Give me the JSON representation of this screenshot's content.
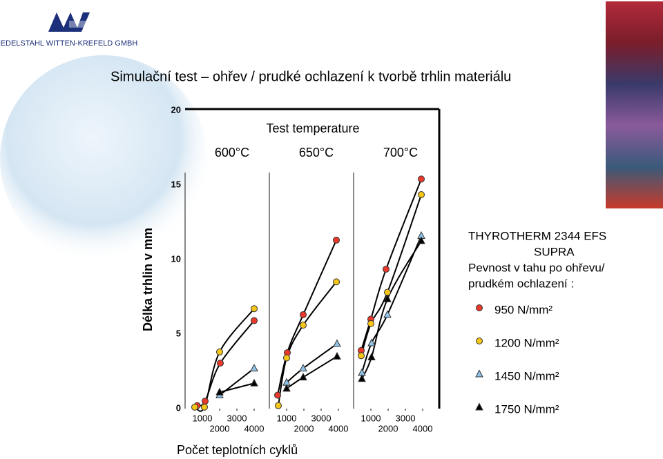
{
  "header": {
    "company": "EDELSTAHL WITTEN-KREFELD GMBH",
    "title": "Simulační test – ohřev /  prudké ochlazení k tvorbě trhlin materiálu"
  },
  "chart_data": {
    "type": "line",
    "title": "Test temperature",
    "ylabel": "Délka  trhlin v  mm",
    "xlabel": "Počet teplotních cyklů",
    "ylim": [
      0,
      20
    ],
    "yticks": [
      0,
      5,
      10,
      15,
      20
    ],
    "panels": [
      {
        "label": "600°C",
        "xlim": [
          0,
          4880
        ],
        "xticks": [
          1000,
          2000,
          3000,
          4000
        ]
      },
      {
        "label": "650°C",
        "xlim": [
          0,
          4880
        ],
        "xticks": [
          1000,
          2000,
          3000,
          4000
        ]
      },
      {
        "label": "700°C",
        "xlim": [
          0,
          4880
        ],
        "xticks": [
          1000,
          2000,
          3000,
          4000
        ]
      }
    ],
    "legend_title": [
      "THYROTHERM 2344 EFS",
      "SUPRA",
      "Pevnost v tahu po ohřevu/",
      "prudkém ochlazení :"
    ],
    "series": [
      {
        "name": "950 N/mm²",
        "color": "#e8392a",
        "marker": "circle",
        "panels": [
          {
            "x": [
              700,
              1160,
              2040,
              4000
            ],
            "values": [
              0.2,
              0.5,
              3.05,
              5.9
            ]
          },
          {
            "x": [
              480,
              1040,
              1960,
              3880
            ],
            "values": [
              0.9,
              3.75,
              6.3,
              11.3
            ]
          },
          {
            "x": [
              440,
              1000,
              1880,
              3920
            ],
            "values": [
              3.9,
              6.0,
              9.35,
              15.4
            ]
          }
        ]
      },
      {
        "name": "1200 N/mm²",
        "color": "#f5c518",
        "marker": "circle",
        "panels": [
          {
            "x": [
              560,
              1120,
              2000,
              4000
            ],
            "values": [
              0.1,
              0.1,
              3.8,
              6.7
            ]
          },
          {
            "x": [
              520,
              1000,
              1960,
              3880
            ],
            "values": [
              0.2,
              3.4,
              5.6,
              8.5
            ]
          },
          {
            "x": [
              440,
              1000,
              1960,
              3920
            ],
            "values": [
              3.55,
              5.7,
              7.8,
              14.35
            ]
          }
        ]
      },
      {
        "name": "1450 N/mm²",
        "color": "#8fc3e8",
        "marker": "triangle",
        "panels": [
          {
            "x": [
              2000,
              4000
            ],
            "values": [
              0.9,
              2.7
            ]
          },
          {
            "x": [
              1000,
              1960,
              3920
            ],
            "values": [
              1.75,
              2.7,
              4.35
            ]
          },
          {
            "x": [
              480,
              1040,
              1960,
              3920
            ],
            "values": [
              2.4,
              4.4,
              6.3,
              11.6
            ]
          }
        ]
      },
      {
        "name": "1750 N/mm²",
        "color": "#000000",
        "marker": "triangle",
        "panels": [
          {
            "x": [
              2000,
              4000
            ],
            "values": [
              1.1,
              1.7
            ]
          },
          {
            "x": [
              1000,
              1960,
              3920
            ],
            "values": [
              1.35,
              2.1,
              3.5
            ]
          },
          {
            "x": [
              480,
              1040,
              1960,
              3920
            ],
            "values": [
              2.0,
              3.45,
              7.35,
              11.25
            ]
          }
        ]
      }
    ]
  }
}
